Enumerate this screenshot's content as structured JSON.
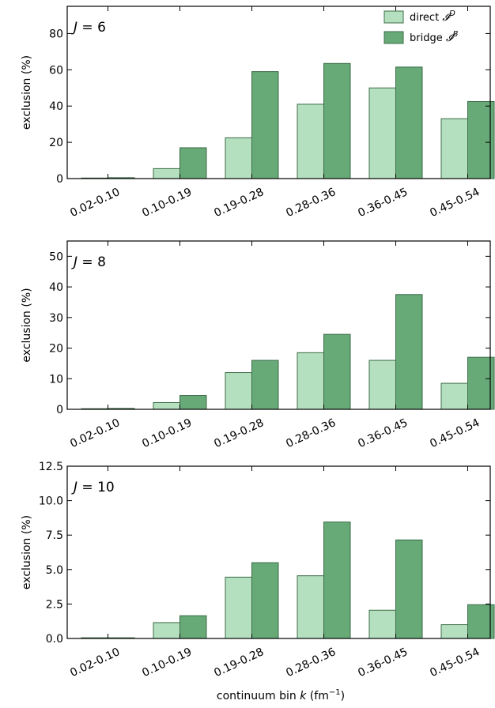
{
  "colors": {
    "direct": "#b5e0c0",
    "bridge": "#67aa78",
    "edge": "#3a6b46",
    "axis": "#000000"
  },
  "legend": {
    "items": [
      {
        "series": "direct",
        "label": "direct",
        "symbol": "𝓘",
        "sup": "D"
      },
      {
        "series": "bridge",
        "label": "bridge",
        "symbol": "𝓘",
        "sup": "B"
      }
    ]
  },
  "xlabel": {
    "text": "continuum bin ",
    "var": "k",
    "unit": " (fm",
    "exp": "−1",
    "close": ")"
  },
  "chart_data": [
    {
      "type": "bar",
      "panel_label": {
        "var": "J",
        "rest": " = 6"
      },
      "categories": [
        "0.02-0.10",
        "0.10-0.19",
        "0.19-0.28",
        "0.28-0.36",
        "0.36-0.45",
        "0.45-0.54"
      ],
      "series": [
        {
          "name": "direct",
          "values": [
            0.3,
            5.5,
            22.5,
            41,
            50,
            33
          ]
        },
        {
          "name": "bridge",
          "values": [
            0.5,
            17,
            59,
            63.5,
            61.5,
            42.5
          ]
        }
      ],
      "ylabel": "exclusion (%)",
      "ylim": [
        0,
        95
      ],
      "yticks": [
        0,
        20,
        40,
        60,
        80
      ],
      "ytick_labels": [
        "0",
        "20",
        "40",
        "60",
        "80"
      ],
      "legend": "top-right"
    },
    {
      "type": "bar",
      "panel_label": {
        "var": "J",
        "rest": " = 8"
      },
      "categories": [
        "0.02-0.10",
        "0.10-0.19",
        "0.19-0.28",
        "0.28-0.36",
        "0.36-0.45",
        "0.45-0.54"
      ],
      "series": [
        {
          "name": "direct",
          "values": [
            0.2,
            2.2,
            12,
            18.5,
            16,
            8.5
          ]
        },
        {
          "name": "bridge",
          "values": [
            0.3,
            4.5,
            16,
            24.5,
            37.5,
            17
          ]
        }
      ],
      "ylabel": "exclusion (%)",
      "ylim": [
        0,
        55
      ],
      "yticks": [
        0,
        10,
        20,
        30,
        40,
        50
      ],
      "ytick_labels": [
        "0",
        "10",
        "20",
        "30",
        "40",
        "50"
      ]
    },
    {
      "type": "bar",
      "panel_label": {
        "var": "J",
        "rest": " = 10"
      },
      "categories": [
        "0.02-0.10",
        "0.10-0.19",
        "0.19-0.28",
        "0.28-0.36",
        "0.36-0.45",
        "0.45-0.54"
      ],
      "series": [
        {
          "name": "direct",
          "values": [
            0.05,
            1.15,
            4.45,
            4.55,
            2.05,
            1.0
          ]
        },
        {
          "name": "bridge",
          "values": [
            0.05,
            1.65,
            5.5,
            8.45,
            7.15,
            2.45
          ]
        }
      ],
      "ylabel": "exclusion (%)",
      "ylim": [
        0,
        12.5
      ],
      "yticks": [
        0,
        2.5,
        5,
        7.5,
        10,
        12.5
      ],
      "ytick_labels": [
        "0.0",
        "2.5",
        "5.0",
        "7.5",
        "10.0",
        "12.5"
      ]
    }
  ]
}
